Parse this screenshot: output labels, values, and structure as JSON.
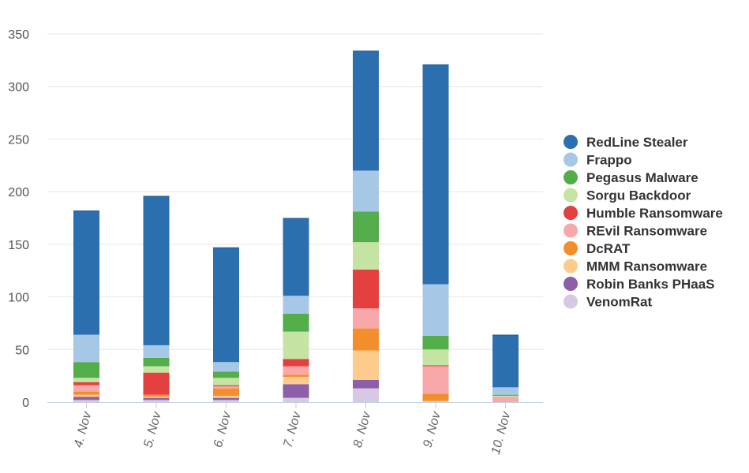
{
  "chart_data": {
    "type": "bar",
    "stacked": true,
    "categories": [
      "4. Nov",
      "5. Nov",
      "6. Nov",
      "7. Nov",
      "8. Nov",
      "9. Nov",
      "10. Nov"
    ],
    "ylim": [
      0,
      350
    ],
    "yticks": [
      0,
      50,
      100,
      150,
      200,
      250,
      300,
      350
    ],
    "grid": true,
    "legend_position": "right",
    "series": [
      {
        "name": "VenomRat",
        "color": "#d7c9e4",
        "values": [
          2,
          2,
          2,
          4,
          13,
          0,
          0
        ]
      },
      {
        "name": "Robin Banks PHaaS",
        "color": "#8c5fa8",
        "values": [
          3,
          2,
          2,
          13,
          8,
          0,
          0
        ]
      },
      {
        "name": "MMM Ransomware",
        "color": "#fdcb8c",
        "values": [
          2,
          1,
          2,
          7,
          28,
          1,
          0
        ]
      },
      {
        "name": "DcRAT",
        "color": "#f28f2c",
        "values": [
          3,
          2,
          7,
          2,
          21,
          7,
          0
        ]
      },
      {
        "name": "REvil Ransomware",
        "color": "#f8a8a8",
        "values": [
          6,
          0,
          2,
          8,
          19,
          26,
          5
        ]
      },
      {
        "name": "Humble Ransomware",
        "color": "#e3403f",
        "values": [
          3,
          21,
          1,
          7,
          37,
          1,
          0
        ]
      },
      {
        "name": "Sorgu Backdoor",
        "color": "#c5e4a3",
        "values": [
          4,
          6,
          7,
          26,
          26,
          15,
          1
        ]
      },
      {
        "name": "Pegasus Malware",
        "color": "#52ad4a",
        "values": [
          15,
          8,
          6,
          17,
          29,
          13,
          1
        ]
      },
      {
        "name": "Frappo",
        "color": "#a6c8e6",
        "values": [
          26,
          12,
          9,
          17,
          39,
          49,
          7
        ]
      },
      {
        "name": "RedLine Stealer",
        "color": "#2c6fae",
        "values": [
          118,
          142,
          109,
          74,
          114,
          209,
          50
        ]
      }
    ]
  }
}
